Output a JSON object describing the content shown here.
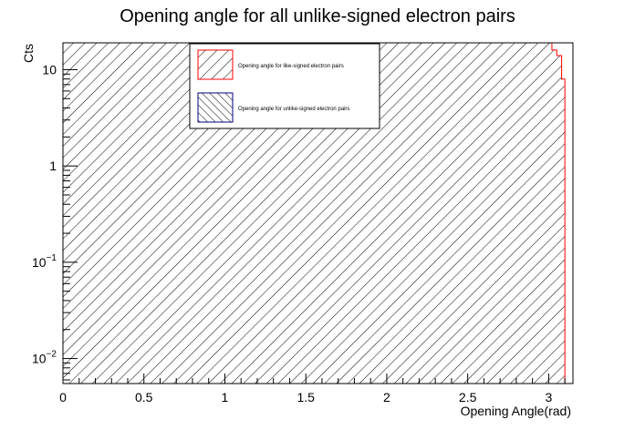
{
  "chart_data": {
    "type": "histogram",
    "title": "Opening angle for all unlike-signed electron pairs",
    "xlabel": "Opening Angle(rad)",
    "ylabel": "Cts",
    "xlim": [
      0,
      3.15
    ],
    "ylim": [
      0.0055,
      19
    ],
    "yscale": "log",
    "x_ticks": [
      {
        "value": 0,
        "label": "0"
      },
      {
        "value": 0.5,
        "label": "0.5"
      },
      {
        "value": 1,
        "label": "1"
      },
      {
        "value": 1.5,
        "label": "1.5"
      },
      {
        "value": 2,
        "label": "2"
      },
      {
        "value": 2.5,
        "label": "2.5"
      },
      {
        "value": 3,
        "label": "3"
      }
    ],
    "y_ticks": [
      {
        "value": 0.01,
        "base": "10",
        "exp": "−2"
      },
      {
        "value": 0.1,
        "base": "10",
        "exp": "−1"
      },
      {
        "value": 1,
        "base": "1",
        "exp": ""
      },
      {
        "value": 10,
        "base": "10",
        "exp": ""
      }
    ],
    "series": [
      {
        "name": "Opening angle for like-signed electron pairs",
        "line_color": "#ff0000",
        "hatch": "down-right",
        "bins": [
          {
            "x0": 0.0,
            "x1": 3.02,
            "y": 19
          },
          {
            "x0": 3.02,
            "x1": 3.05,
            "y": 16
          },
          {
            "x0": 3.05,
            "x1": 3.08,
            "y": 14
          },
          {
            "x0": 3.08,
            "x1": 3.1,
            "y": 8
          },
          {
            "x0": 3.1,
            "x1": 3.15,
            "y": 0.0055
          }
        ]
      },
      {
        "name": "Opening angle for unlike-signed electron pairs",
        "line_color": "#000080",
        "hatch": "up-right",
        "bins": []
      }
    ],
    "legend_placement": "top-center",
    "grid": false
  }
}
